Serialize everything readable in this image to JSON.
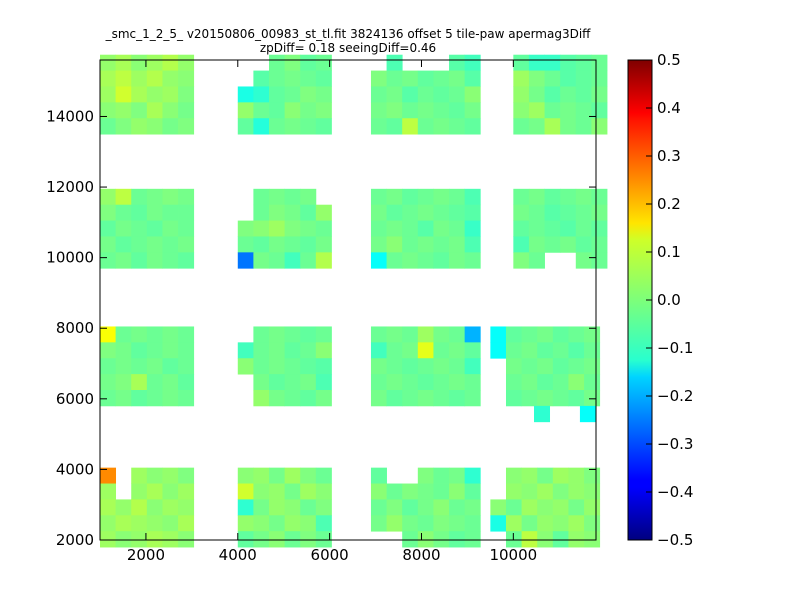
{
  "chart_data": {
    "type": "heatmap",
    "title": "_smc_1_2_5_ v20150806_00983_st_tl.fit 3824136 offset 5 tile-paw apermag3Diff",
    "subtitle": "zpDiff= 0.18 seeingDiff=0.46",
    "xlim": [
      1000,
      11800
    ],
    "ylim": [
      2000,
      15600
    ],
    "x_ticks": [
      "2000",
      "4000",
      "6000",
      "8000",
      "10000"
    ],
    "y_ticks": [
      "2000",
      "4000",
      "6000",
      "8000",
      "10000",
      "12000",
      "14000"
    ],
    "colorbar": {
      "min": -0.5,
      "max": 0.5,
      "colormap": "jet",
      "ticks": [
        "0.5",
        "0.4",
        "0.3",
        "0.2",
        "0.1",
        "0.0",
        "−0.1",
        "−0.2",
        "−0.3",
        "−0.4",
        "−0.5"
      ]
    },
    "grid": false,
    "cell_size": [
      340,
      450
    ],
    "tiles": [
      {
        "x0": 1000,
        "y0": 13500,
        "cols": 6,
        "rows": 5,
        "values": [
          [
            0.02,
            0.04,
            0.01,
            0.03,
            0.05,
            0.02
          ],
          [
            0.04,
            0.06,
            0.03,
            0.05,
            0.02,
            0.01
          ],
          [
            0.03,
            0.08,
            0.04,
            0.02,
            0.03,
            0.0
          ],
          [
            0.01,
            0.02,
            0.0,
            0.04,
            0.01,
            -0.01
          ],
          [
            -0.02,
            0.0,
            0.02,
            0.01,
            -0.01,
            0.0
          ]
        ]
      },
      {
        "x0": 4000,
        "y0": 13500,
        "cols": 6,
        "rows": 5,
        "values": [
          [
            null,
            null,
            -0.02,
            0.0,
            -0.03,
            -0.02
          ],
          [
            null,
            -0.04,
            -0.02,
            -0.01,
            -0.02,
            -0.03
          ],
          [
            -0.1,
            -0.08,
            -0.03,
            -0.02,
            0.0,
            -0.01
          ],
          [
            0.02,
            -0.02,
            -0.03,
            0.01,
            -0.01,
            0.0
          ],
          [
            -0.03,
            -0.09,
            -0.02,
            -0.01,
            -0.02,
            -0.03
          ]
        ]
      },
      {
        "x0": 6900,
        "y0": 13500,
        "cols": 7,
        "rows": 5,
        "values": [
          [
            null,
            -0.05,
            null,
            null,
            null,
            -0.04,
            -0.06
          ],
          [
            0.0,
            -0.02,
            -0.01,
            -0.03,
            -0.02,
            -0.01,
            -0.04
          ],
          [
            -0.02,
            -0.01,
            -0.04,
            -0.02,
            -0.03,
            -0.02,
            0.01
          ],
          [
            -0.01,
            0.0,
            -0.02,
            -0.01,
            -0.02,
            -0.03,
            -0.01
          ],
          [
            -0.02,
            -0.03,
            0.06,
            -0.02,
            -0.01,
            -0.02,
            -0.03
          ]
        ]
      },
      {
        "x0": 10000,
        "y0": 13500,
        "cols": 6,
        "rows": 5,
        "values": [
          [
            -0.03,
            -0.07,
            -0.07,
            -0.04,
            -0.03,
            -0.02
          ],
          [
            0.03,
            0.0,
            -0.02,
            -0.04,
            -0.03,
            -0.02
          ],
          [
            0.02,
            -0.01,
            -0.04,
            -0.02,
            -0.03,
            -0.01
          ],
          [
            0.01,
            0.03,
            -0.02,
            -0.01,
            -0.02,
            -0.03
          ],
          [
            -0.02,
            -0.01,
            0.04,
            -0.01,
            -0.02,
            0.01
          ]
        ]
      },
      {
        "x0": 1000,
        "y0": 9700,
        "cols": 6,
        "rows": 5,
        "values": [
          [
            0.02,
            0.06,
            -0.02,
            -0.01,
            0.0,
            -0.01
          ],
          [
            0.0,
            -0.02,
            -0.03,
            -0.01,
            -0.02,
            -0.02
          ],
          [
            -0.03,
            -0.01,
            -0.02,
            -0.03,
            -0.01,
            -0.02
          ],
          [
            -0.01,
            -0.03,
            -0.02,
            -0.01,
            -0.02,
            -0.01
          ],
          [
            -0.02,
            -0.01,
            -0.03,
            -0.01,
            -0.02,
            -0.03
          ]
        ]
      },
      {
        "x0": 4000,
        "y0": 9700,
        "cols": 6,
        "rows": 5,
        "values": [
          [
            null,
            -0.02,
            -0.01,
            -0.02,
            -0.01,
            null
          ],
          [
            null,
            -0.02,
            0.0,
            -0.01,
            -0.03,
            0.02
          ],
          [
            0.0,
            0.01,
            0.03,
            0.0,
            -0.01,
            -0.02
          ],
          [
            -0.02,
            -0.03,
            -0.01,
            -0.02,
            -0.03,
            -0.01
          ],
          [
            -0.26,
            -0.01,
            -0.02,
            -0.06,
            -0.02,
            0.05
          ]
        ]
      },
      {
        "x0": 6900,
        "y0": 9700,
        "cols": 7,
        "rows": 5,
        "values": [
          [
            -0.02,
            -0.01,
            -0.03,
            -0.02,
            -0.01,
            -0.02,
            -0.05
          ],
          [
            -0.01,
            -0.03,
            -0.02,
            -0.01,
            -0.02,
            -0.03,
            -0.04
          ],
          [
            -0.02,
            -0.01,
            -0.02,
            -0.04,
            -0.01,
            -0.02,
            -0.07
          ],
          [
            -0.01,
            0.01,
            -0.02,
            -0.01,
            -0.02,
            -0.01,
            -0.05
          ],
          [
            -0.12,
            -0.02,
            -0.01,
            -0.02,
            -0.03,
            -0.01,
            -0.02
          ]
        ]
      },
      {
        "x0": 10000,
        "y0": 9700,
        "cols": 6,
        "rows": 5,
        "values": [
          [
            -0.02,
            -0.01,
            -0.03,
            -0.02,
            -0.01,
            -0.02
          ],
          [
            -0.01,
            -0.02,
            -0.04,
            -0.03,
            -0.02,
            -0.01
          ],
          [
            -0.03,
            -0.02,
            -0.03,
            -0.04,
            -0.02,
            -0.03
          ],
          [
            -0.05,
            -0.01,
            -0.02,
            -0.01,
            -0.03,
            -0.02
          ],
          [
            0.0,
            -0.02,
            null,
            null,
            -0.01,
            -0.02
          ]
        ]
      },
      {
        "x0": 1000,
        "y0": 5800,
        "cols": 6,
        "rows": 5,
        "values": [
          [
            0.12,
            -0.02,
            -0.01,
            -0.02,
            -0.01,
            -0.02
          ],
          [
            0.0,
            -0.01,
            -0.03,
            -0.02,
            -0.01,
            -0.02
          ],
          [
            -0.02,
            -0.01,
            -0.02,
            -0.01,
            -0.03,
            -0.02
          ],
          [
            -0.01,
            0.0,
            0.04,
            -0.02,
            -0.01,
            -0.03
          ],
          [
            -0.02,
            -0.01,
            -0.03,
            -0.02,
            -0.01,
            -0.02
          ]
        ]
      },
      {
        "x0": 4000,
        "y0": 5800,
        "cols": 6,
        "rows": 5,
        "values": [
          [
            null,
            -0.02,
            -0.01,
            -0.02,
            -0.03,
            -0.02
          ],
          [
            -0.06,
            -0.02,
            -0.01,
            -0.03,
            -0.02,
            0.01
          ],
          [
            0.01,
            -0.02,
            -0.01,
            -0.02,
            -0.03,
            -0.04
          ],
          [
            null,
            -0.01,
            -0.03,
            -0.02,
            -0.01,
            -0.05
          ],
          [
            null,
            0.02,
            -0.01,
            -0.02,
            -0.03,
            -0.01
          ]
        ]
      },
      {
        "x0": 6900,
        "y0": 5800,
        "cols": 7,
        "rows": 5,
        "values": [
          [
            -0.02,
            -0.01,
            -0.02,
            0.03,
            -0.01,
            -0.02,
            -0.2
          ],
          [
            -0.06,
            -0.02,
            -0.01,
            0.1,
            -0.02,
            -0.01,
            -0.03
          ],
          [
            -0.01,
            -0.02,
            -0.03,
            -0.02,
            -0.01,
            -0.02,
            -0.06
          ],
          [
            -0.02,
            -0.01,
            -0.02,
            -0.03,
            -0.02,
            -0.01,
            -0.02
          ],
          [
            -0.01,
            -0.03,
            -0.02,
            -0.01,
            -0.02,
            -0.03,
            -0.02
          ]
        ]
      },
      {
        "x0": 9500,
        "y0": 5800,
        "cols": 7,
        "rows": 5,
        "values": [
          [
            -0.12,
            -0.03,
            -0.02,
            -0.01,
            -0.03,
            -0.02,
            -0.01
          ],
          [
            -0.12,
            -0.02,
            -0.01,
            -0.03,
            -0.02,
            -0.04,
            -0.02
          ],
          [
            null,
            -0.01,
            -0.02,
            -0.01,
            -0.03,
            -0.02,
            -0.01
          ],
          [
            null,
            -0.02,
            -0.01,
            -0.03,
            -0.02,
            0.01,
            -0.02
          ],
          [
            null,
            -0.03,
            -0.02,
            -0.01,
            -0.02,
            -0.03,
            -0.01
          ]
        ]
      },
      {
        "x0": 10450,
        "y0": 5350,
        "cols": 1,
        "rows": 1,
        "values": [
          [
            -0.08
          ]
        ]
      },
      {
        "x0": 11450,
        "y0": 5350,
        "cols": 1,
        "rows": 1,
        "values": [
          [
            -0.12
          ]
        ]
      },
      {
        "x0": 1000,
        "y0": 1800,
        "cols": 6,
        "rows": 5,
        "values": [
          [
            0.24,
            null,
            0.03,
            0.01,
            0.02,
            0.0
          ],
          [
            0.03,
            null,
            0.02,
            0.04,
            0.01,
            0.03
          ],
          [
            0.04,
            0.02,
            0.05,
            0.01,
            0.03,
            0.02
          ],
          [
            0.02,
            0.04,
            0.03,
            0.02,
            0.01,
            0.04
          ],
          [
            0.03,
            0.01,
            0.02,
            0.04,
            0.03,
            0.01
          ]
        ]
      },
      {
        "x0": 4000,
        "y0": 1800,
        "cols": 6,
        "rows": 5,
        "values": [
          [
            0.01,
            0.02,
            -0.01,
            0.03,
            0.0,
            -0.02
          ],
          [
            0.08,
            0.01,
            0.02,
            -0.01,
            0.03,
            0.01
          ],
          [
            -0.08,
            -0.01,
            0.02,
            0.01,
            -0.02,
            0.0
          ],
          [
            0.02,
            0.01,
            -0.01,
            0.02,
            0.01,
            -0.05
          ],
          [
            -0.03,
            -0.01,
            0.01,
            -0.02,
            0.0,
            -0.02
          ]
        ]
      },
      {
        "x0": 6900,
        "y0": 1800,
        "cols": 7,
        "rows": 5,
        "values": [
          [
            -0.03,
            null,
            null,
            0.0,
            -0.02,
            -0.01,
            -0.08
          ],
          [
            0.01,
            -0.02,
            0.0,
            -0.01,
            -0.02,
            0.01,
            -0.03
          ],
          [
            -0.02,
            0.0,
            -0.03,
            -0.01,
            0.01,
            -0.02,
            -0.01
          ],
          [
            -0.01,
            0.02,
            -0.01,
            -0.02,
            0.0,
            -0.01,
            -0.02
          ],
          [
            null,
            null,
            -0.02,
            0.01,
            -0.01,
            -0.03,
            -0.02
          ]
        ]
      },
      {
        "x0": 9500,
        "y0": 1800,
        "cols": 7,
        "rows": 5,
        "values": [
          [
            null,
            0.01,
            0.02,
            -0.01,
            0.03,
            0.02,
            0.0
          ],
          [
            null,
            0.02,
            0.01,
            0.03,
            0.0,
            0.02,
            0.01
          ],
          [
            0.01,
            -0.02,
            0.03,
            0.01,
            0.02,
            -0.01,
            0.02
          ],
          [
            -0.1,
            0.03,
            -0.01,
            0.02,
            0.01,
            0.03,
            0.0
          ],
          [
            null,
            -0.02,
            0.06,
            0.01,
            -0.03,
            0.02,
            0.01
          ]
        ]
      }
    ]
  }
}
